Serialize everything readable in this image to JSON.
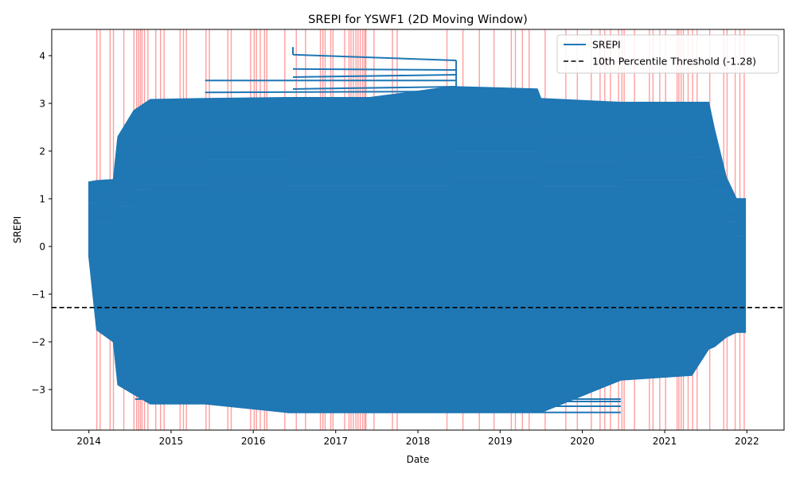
{
  "chart_data": {
    "type": "line",
    "title": "SREPI for YSWF1 (2D Moving Window)",
    "xlabel": "Date",
    "ylabel": "SREPI",
    "xlim": [
      "2013-07-20",
      "2022-06-15"
    ],
    "ylim": [
      -3.85,
      4.55
    ],
    "x_ticks": [
      "2014-01-01",
      "2015-01-01",
      "2016-01-01",
      "2017-01-01",
      "2018-01-01",
      "2019-01-01",
      "2020-01-01",
      "2021-01-01",
      "2022-01-01"
    ],
    "x_tick_labels": [
      "2014",
      "2015",
      "2016",
      "2017",
      "2018",
      "2019",
      "2020",
      "2021",
      "2022"
    ],
    "y_ticks": [
      -3,
      -2,
      -1,
      0,
      1,
      2,
      3,
      4
    ],
    "y_tick_labels": [
      "−3",
      "−2",
      "−1",
      "0",
      "1",
      "2",
      "3",
      "4"
    ],
    "grid": false,
    "legend_position": "top-right",
    "series": [
      {
        "name": "SREPI",
        "color": "#1f77b4",
        "envelope": [
          {
            "x": "2014-01-01",
            "upper": 1.35,
            "lower": -0.2
          },
          {
            "x": "2014-02-05",
            "upper": 1.38,
            "lower": -1.75
          },
          {
            "x": "2014-04-20",
            "upper": 1.4,
            "lower": -2.0
          },
          {
            "x": "2014-05-10",
            "upper": 2.3,
            "lower": -2.9
          },
          {
            "x": "2014-07-20",
            "upper": 2.85,
            "lower": -3.1
          },
          {
            "x": "2014-10-01",
            "upper": 3.08,
            "lower": -3.3
          },
          {
            "x": "2015-06-01",
            "upper": 3.1,
            "lower": -3.3
          },
          {
            "x": "2016-06-01",
            "upper": 3.12,
            "lower": -3.48
          },
          {
            "x": "2017-06-01",
            "upper": 3.12,
            "lower": -3.48
          },
          {
            "x": "2018-06-01",
            "upper": 3.35,
            "lower": -3.48
          },
          {
            "x": "2019-06-15",
            "upper": 3.3,
            "lower": -3.48
          },
          {
            "x": "2019-07-01",
            "upper": 3.1,
            "lower": -3.48
          },
          {
            "x": "2020-06-20",
            "upper": 3.02,
            "lower": -2.8
          },
          {
            "x": "2021-05-01",
            "upper": 3.02,
            "lower": -2.7
          },
          {
            "x": "2021-07-15",
            "upper": 3.02,
            "lower": -2.15
          },
          {
            "x": "2021-08-10",
            "upper": 2.45,
            "lower": -2.1
          },
          {
            "x": "2021-10-01",
            "upper": 1.45,
            "lower": -1.9
          },
          {
            "x": "2021-11-15",
            "upper": 1.0,
            "lower": -1.8
          },
          {
            "x": "2021-12-25",
            "upper": 1.0,
            "lower": -1.8
          }
        ],
        "upper_outliers": [
          {
            "x_start": "2016-06-25",
            "x_end": "2018-06-20",
            "y_start": 4.02,
            "y_end": 3.9
          },
          {
            "x_start": "2016-06-25",
            "x_end": "2018-06-20",
            "y_start": 3.72,
            "y_end": 3.7
          },
          {
            "x_start": "2015-06-01",
            "x_end": "2018-06-20",
            "y_start": 3.48,
            "y_end": 3.48
          },
          {
            "x_start": "2016-06-25",
            "x_end": "2018-06-20",
            "y_start": 3.55,
            "y_end": 3.6
          },
          {
            "x_start": "2015-06-01",
            "x_end": "2018-06-20",
            "y_start": 3.23,
            "y_end": 3.25
          },
          {
            "x_start": "2016-06-25",
            "x_end": "2018-06-20",
            "y_start": 3.3,
            "y_end": 3.35
          }
        ],
        "upper_spike": {
          "x": "2016-06-25",
          "y_start": 4.18,
          "y_end": 4.02
        },
        "lower_outliers": [
          {
            "x_start": "2014-07-25",
            "x_end": "2017-06-01",
            "y_start": -3.1,
            "y_end": -3.0
          },
          {
            "x_start": "2014-07-25",
            "x_end": "2020-06-20",
            "y_start": -3.2,
            "y_end": -3.2
          },
          {
            "x_start": "2014-09-10",
            "x_end": "2020-06-20",
            "y_start": -3.25,
            "y_end": -3.25
          },
          {
            "x_start": "2016-06-01",
            "x_end": "2020-06-20",
            "y_start": -3.48,
            "y_end": -3.48
          },
          {
            "x_start": "2016-06-01",
            "x_end": "2020-06-20",
            "y_start": -3.35,
            "y_end": -3.35
          }
        ]
      },
      {
        "name": "10th Percentile Threshold (-1.28)",
        "color": "#000000",
        "style": "dashed",
        "y": -1.28
      }
    ],
    "highlight_color": "#ff0000",
    "highlight_dates": [
      "2014-02-05",
      "2014-02-20",
      "2014-04-05",
      "2014-04-20",
      "2014-06-05",
      "2014-07-20",
      "2014-08-01",
      "2014-08-10",
      "2014-08-18",
      "2014-08-25",
      "2014-09-05",
      "2014-09-20",
      "2014-10-25",
      "2014-11-15",
      "2014-12-01",
      "2015-02-10",
      "2015-02-25",
      "2015-03-10",
      "2015-06-05",
      "2015-06-20",
      "2015-09-10",
      "2015-09-25",
      "2015-12-20",
      "2016-01-05",
      "2016-01-15",
      "2016-02-01",
      "2016-02-20",
      "2016-03-01",
      "2016-05-20",
      "2016-07-10",
      "2016-08-20",
      "2016-10-25",
      "2016-11-05",
      "2016-11-15",
      "2016-12-10",
      "2016-12-20",
      "2017-02-10",
      "2017-03-01",
      "2017-03-10",
      "2017-03-20",
      "2017-04-01",
      "2017-04-10",
      "2017-04-20",
      "2017-05-01",
      "2017-05-10",
      "2017-05-15",
      "2017-06-20",
      "2017-09-10",
      "2017-10-01",
      "2018-05-10",
      "2018-07-20",
      "2018-10-01",
      "2018-12-05",
      "2019-02-20",
      "2019-03-10",
      "2019-04-10",
      "2019-05-10",
      "2019-07-20",
      "2019-10-20",
      "2019-12-10",
      "2020-02-10",
      "2020-03-20",
      "2020-04-10",
      "2020-05-05",
      "2020-06-10",
      "2020-06-25",
      "2020-07-05",
      "2020-08-20",
      "2020-10-25",
      "2020-11-10",
      "2020-12-10",
      "2021-01-05",
      "2021-02-25",
      "2021-03-05",
      "2021-03-15",
      "2021-03-25",
      "2021-04-15",
      "2021-05-05",
      "2021-05-25",
      "2021-07-20",
      "2021-09-20",
      "2021-10-05",
      "2021-11-10",
      "2021-12-01",
      "2021-12-20"
    ]
  }
}
